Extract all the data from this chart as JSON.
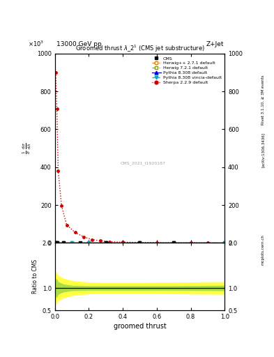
{
  "collision": "13000 GeV pp",
  "process": "Z+Jet",
  "watermark": "CMS_2021_I1920187",
  "xlabel": "groomed thrust",
  "ylabel_ratio": "Ratio to CMS",
  "right_label_top": "Rivet 3.1.10, ≥ 3M events",
  "right_label_bot": "[arXiv:1306.3436]",
  "mcplots_label": "mcplots.cern.ch",
  "ylim_main": [
    0,
    1000
  ],
  "yticks_main": [
    0,
    200,
    400,
    600,
    800,
    1000
  ],
  "ylim_ratio": [
    0.5,
    2.0
  ],
  "yticks_ratio": [
    0.5,
    1.0,
    2.0
  ],
  "xlim": [
    0,
    1
  ],
  "sherpa_x": [
    0.005,
    0.012,
    0.02,
    0.04,
    0.07,
    0.12,
    0.17,
    0.22,
    0.27,
    0.32,
    0.4,
    0.5,
    0.6,
    0.7,
    0.8,
    0.9
  ],
  "sherpa_y": [
    900,
    710,
    380,
    195,
    95,
    55,
    32,
    18,
    11,
    7,
    4,
    2.5,
    1.5,
    1.0,
    0.5,
    0.2
  ],
  "flat_x": [
    0.0,
    0.005,
    0.015,
    0.05,
    0.1,
    0.2,
    0.3,
    0.5,
    0.7,
    1.0
  ],
  "flat_y": [
    2.0,
    2.0,
    2.0,
    2.0,
    2.0,
    2.0,
    2.0,
    2.0,
    2.0,
    2.0
  ],
  "cms_x": [
    0.005,
    0.015,
    0.05,
    0.15,
    0.3,
    0.5,
    0.7
  ],
  "cms_y": [
    2.0,
    2.0,
    2.0,
    2.0,
    2.0,
    2.0,
    2.0
  ],
  "ratio_x": [
    0.0,
    0.005,
    0.01,
    0.02,
    0.05,
    0.1,
    0.2,
    0.3,
    0.5,
    0.7,
    1.0
  ],
  "ratio_yellow_upper": [
    1.15,
    1.32,
    1.38,
    1.28,
    1.22,
    1.17,
    1.13,
    1.12,
    1.12,
    1.13,
    1.14
  ],
  "ratio_yellow_lower": [
    0.85,
    0.68,
    0.62,
    0.72,
    0.78,
    0.83,
    0.87,
    0.88,
    0.88,
    0.87,
    0.86
  ],
  "ratio_green_upper": [
    1.05,
    1.18,
    1.22,
    1.14,
    1.09,
    1.06,
    1.05,
    1.05,
    1.05,
    1.05,
    1.06
  ],
  "ratio_green_lower": [
    0.95,
    0.82,
    0.78,
    0.86,
    0.91,
    0.94,
    0.95,
    0.95,
    0.95,
    0.95,
    0.94
  ],
  "colors": {
    "cms": "#000000",
    "herwig_pp": "#e08000",
    "herwig": "#80a000",
    "pythia": "#0000cc",
    "pythia_vincia": "#00aacc",
    "sherpa": "#cc0000",
    "yellow_band": "#ffff44",
    "green_band": "#aadd44"
  }
}
